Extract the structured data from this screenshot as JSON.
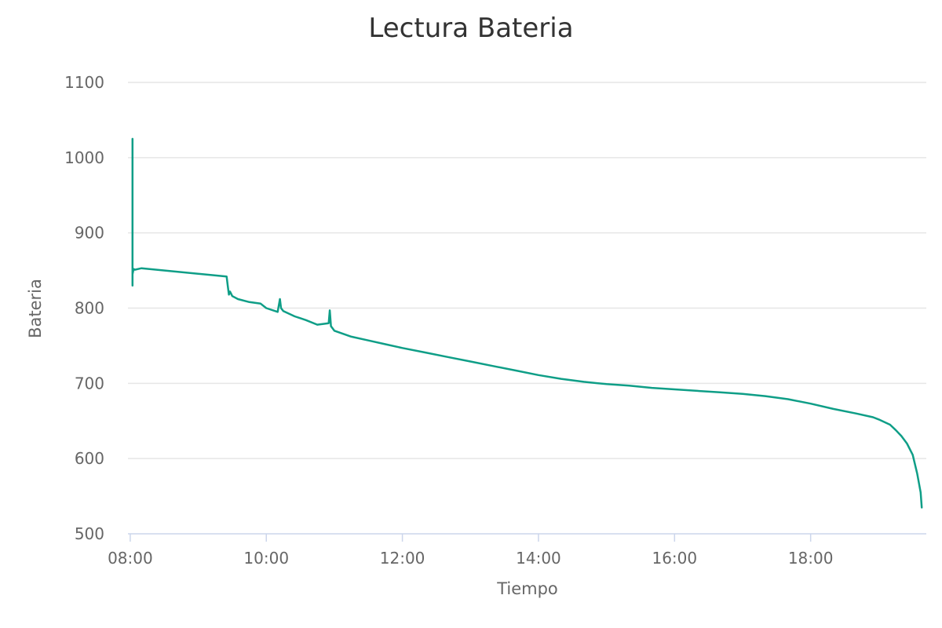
{
  "chart_data": {
    "type": "line",
    "title": "Lectura Bateria",
    "xlabel": "Tiempo",
    "ylabel": "Bateria",
    "ylim": [
      500,
      1100
    ],
    "yticks": [
      "500",
      "600",
      "700",
      "800",
      "900",
      "1000",
      "1100"
    ],
    "xlim": [
      "07:58",
      "19:42"
    ],
    "xticks": [
      "08:00",
      "10:00",
      "12:00",
      "14:00",
      "16:00",
      "18:00"
    ],
    "grid": true,
    "legend": "none",
    "colors": {
      "series": "#0f9e87",
      "grid": "#e6e6e6",
      "axis": "#ccd6eb"
    },
    "series": [
      {
        "x": [
          "08:02",
          "08:02",
          "08:02",
          "08:02",
          "08:03",
          "08:04",
          "08:10",
          "09:25",
          "09:26",
          "09:27",
          "09:28",
          "09:30",
          "09:35",
          "09:45",
          "09:55",
          "10:00",
          "10:10",
          "10:12",
          "10:13",
          "10:15",
          "10:25",
          "10:35",
          "10:45",
          "10:55",
          "10:56",
          "10:57",
          "11:00",
          "11:15",
          "11:30",
          "11:45",
          "12:00",
          "12:20",
          "12:40",
          "13:00",
          "13:20",
          "13:40",
          "14:00",
          "14:20",
          "14:40",
          "15:00",
          "15:20",
          "15:40",
          "16:00",
          "16:20",
          "16:40",
          "17:00",
          "17:20",
          "17:40",
          "18:00",
          "18:20",
          "18:40",
          "18:55",
          "19:00",
          "19:10",
          "19:15",
          "19:20",
          "19:25",
          "19:30",
          "19:34",
          "19:37",
          "19:38"
        ],
        "y": [
          830,
          1025,
          850,
          845,
          852,
          851,
          853,
          842,
          830,
          818,
          822,
          816,
          812,
          808,
          806,
          800,
          795,
          812,
          800,
          796,
          789,
          784,
          778,
          780,
          797,
          776,
          770,
          762,
          757,
          752,
          747,
          741,
          735,
          729,
          723,
          717,
          711,
          706,
          702,
          699,
          697,
          694,
          692,
          690,
          688,
          686,
          683,
          679,
          673,
          666,
          660,
          655,
          652,
          645,
          638,
          630,
          620,
          605,
          580,
          555,
          535
        ]
      }
    ]
  }
}
